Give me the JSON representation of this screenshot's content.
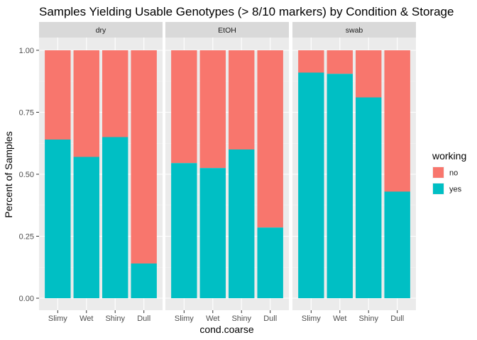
{
  "chart_data": {
    "type": "bar",
    "title": "Samples Yielding Usable Genotypes (> 8/10 markers) by Condition & Storage",
    "xlabel": "cond.coarse",
    "ylabel": "Percent of Samples",
    "ylim": [
      0,
      1
    ],
    "yticks": [
      "0.00",
      "0.25",
      "0.50",
      "0.75",
      "1.00"
    ],
    "ytick_values": [
      0,
      0.25,
      0.5,
      0.75,
      1.0
    ],
    "categories": [
      "Slimy",
      "Wet",
      "Shiny",
      "Dull"
    ],
    "stacked": true,
    "grid": true,
    "legend": {
      "title": "working",
      "position": "right",
      "entries": [
        {
          "label": "no",
          "color": "#F8766D"
        },
        {
          "label": "yes",
          "color": "#00BFC4"
        }
      ]
    },
    "facets": [
      {
        "name": "dry",
        "series": [
          {
            "name": "yes",
            "values": [
              0.64,
              0.57,
              0.65,
              0.14
            ]
          },
          {
            "name": "no",
            "values": [
              0.36,
              0.43,
              0.35,
              0.86
            ]
          }
        ]
      },
      {
        "name": "EtOH",
        "series": [
          {
            "name": "yes",
            "values": [
              0.545,
              0.525,
              0.6,
              0.285
            ]
          },
          {
            "name": "no",
            "values": [
              0.455,
              0.475,
              0.4,
              0.715
            ]
          }
        ]
      },
      {
        "name": "swab",
        "series": [
          {
            "name": "yes",
            "values": [
              0.91,
              0.905,
              0.81,
              0.43
            ]
          },
          {
            "name": "no",
            "values": [
              0.09,
              0.095,
              0.19,
              0.57
            ]
          }
        ]
      }
    ]
  }
}
